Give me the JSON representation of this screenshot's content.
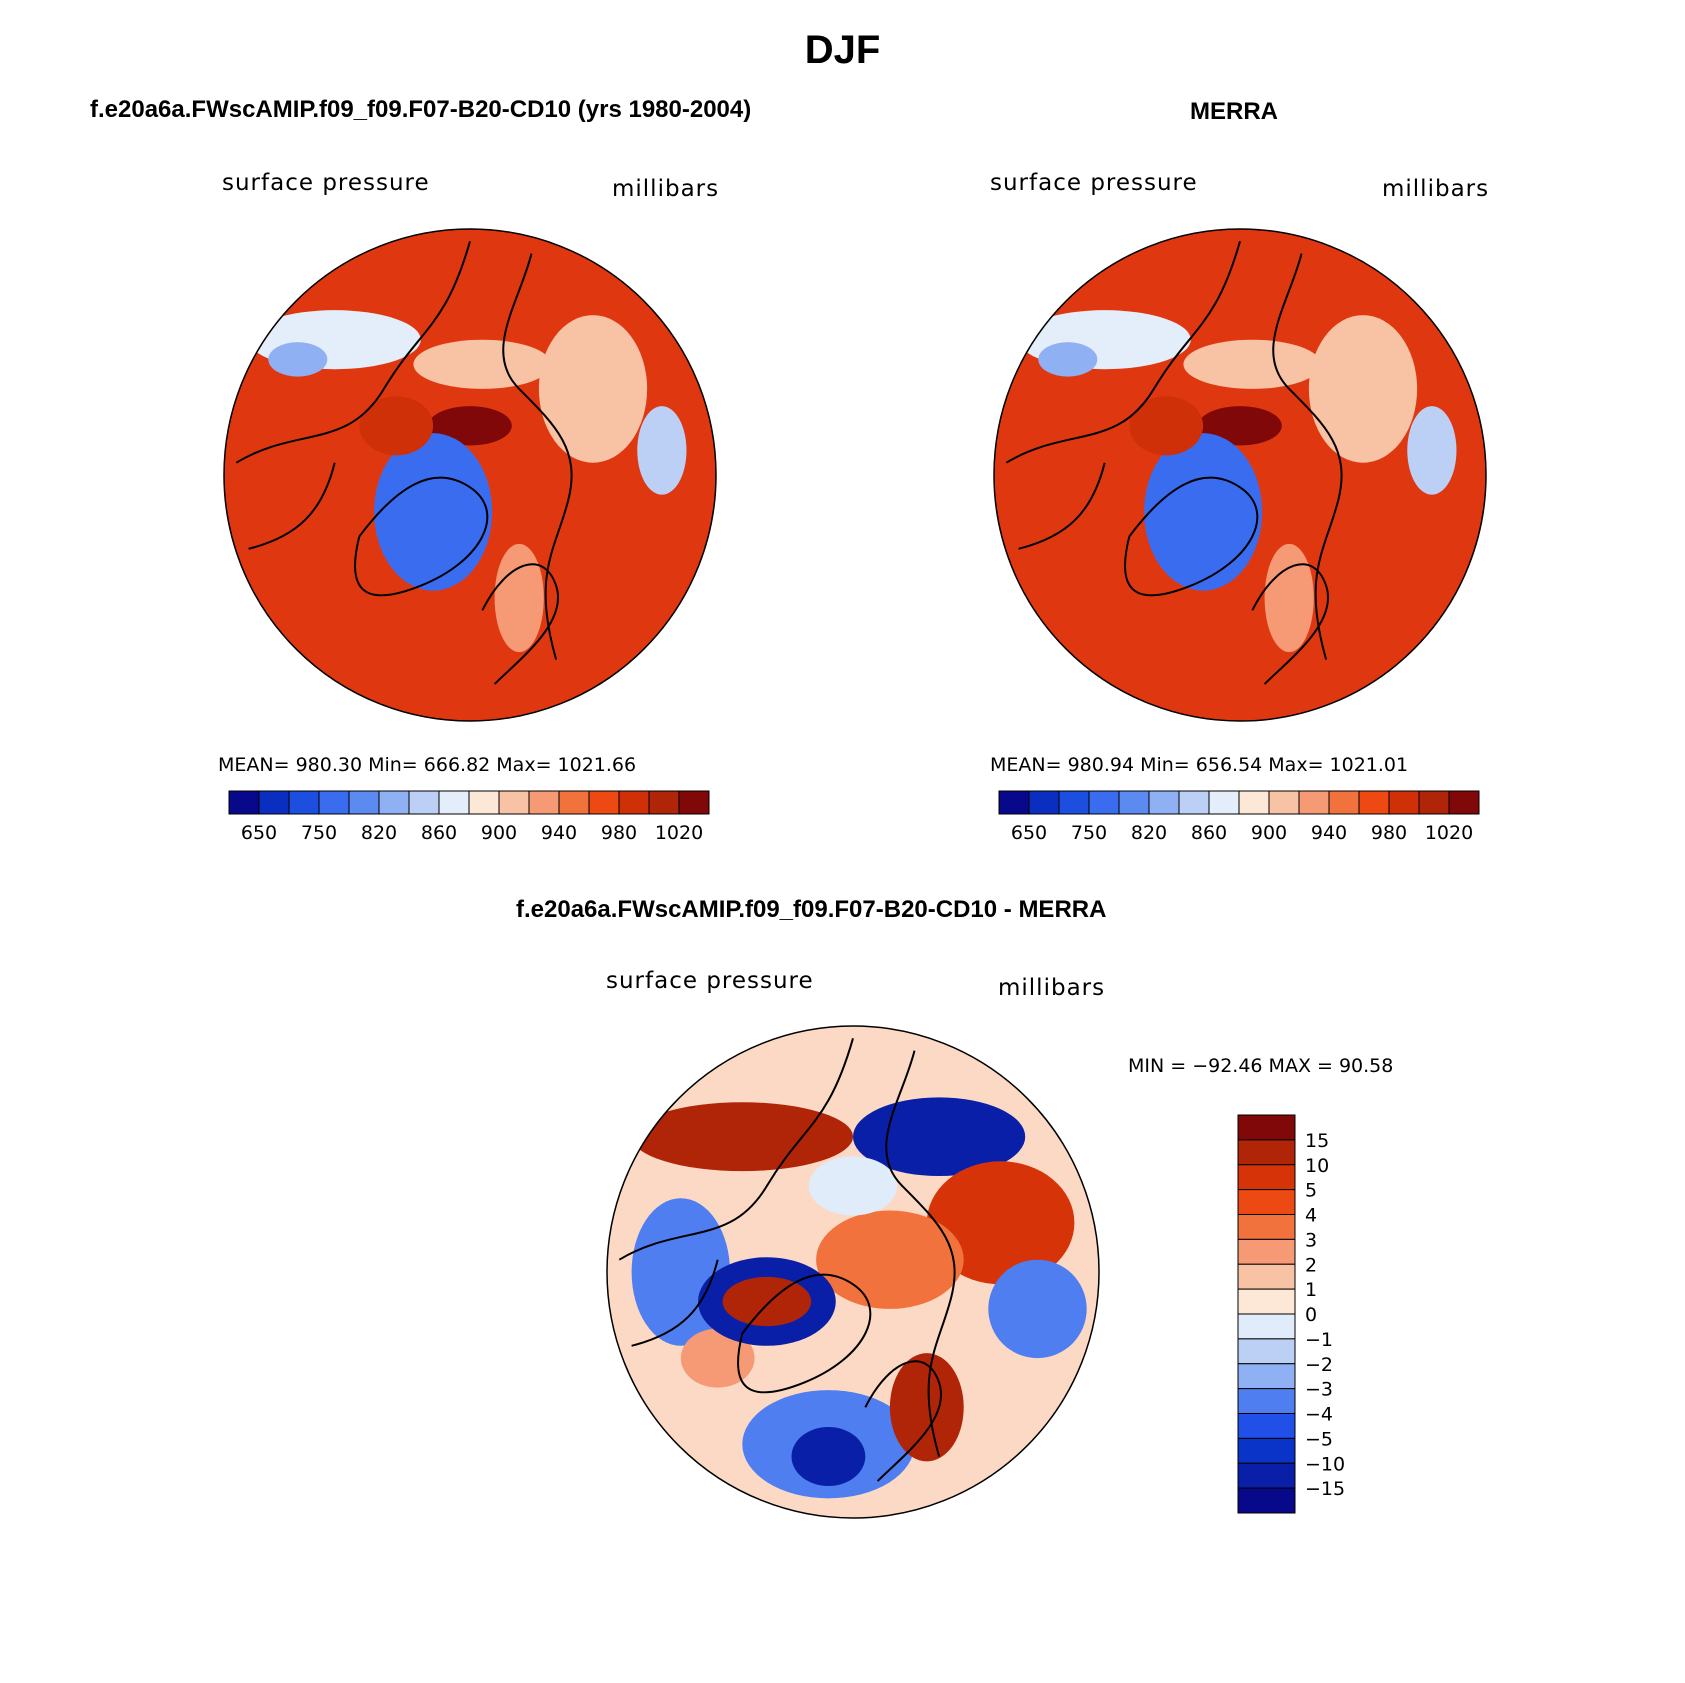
{
  "figure": {
    "title": "DJF"
  },
  "panels": [
    {
      "id": "model",
      "title": "f.e20a6a.FWscAMIP.f09_f09.F07-B20-CD10 (yrs 1980-2004)",
      "variable": "surface pressure",
      "units": "millibars",
      "stats": "MEAN=  980.30   Min=  666.82   Max=  1021.66",
      "colorbar_ticks": [
        "650",
        "750",
        "820",
        "860",
        "900",
        "940",
        "980",
        "1020"
      ]
    },
    {
      "id": "merra",
      "title": "MERRA",
      "variable": "surface pressure",
      "units": "millibars",
      "stats": "MEAN=  980.94   Min=  656.54   Max=  1021.01",
      "colorbar_ticks": [
        "650",
        "750",
        "820",
        "860",
        "900",
        "940",
        "980",
        "1020"
      ]
    },
    {
      "id": "difference",
      "title": "f.e20a6a.FWscAMIP.f09_f09.F07-B20-CD10 - MERRA",
      "variable": "surface pressure",
      "units": "millibars",
      "stats": "MIN  =  −92.46  MAX  =    90.58",
      "colorbar_ticks": [
        "15",
        "10",
        "5",
        "4",
        "3",
        "2",
        "1",
        "0",
        "−1",
        "−2",
        "−3",
        "−4",
        "−5",
        "−10",
        "−15"
      ]
    }
  ],
  "colors": {
    "abs_scale": [
      "#08088a",
      "#0a2fc0",
      "#1c4fe0",
      "#3a6cf0",
      "#5b8af0",
      "#8fb0f2",
      "#bcd0f6",
      "#e4eefa",
      "#fde8d8",
      "#f8c2a4",
      "#f59a74",
      "#f2723e",
      "#ec4a12",
      "#cf3008",
      "#b02408",
      "#800808"
    ],
    "diff_scale": [
      "#800808",
      "#b02408",
      "#d63408",
      "#ec4a12",
      "#f2723e",
      "#f59a74",
      "#f8c2a4",
      "#fde8d8",
      "#e0ecfa",
      "#bcd0f6",
      "#8fb0f2",
      "#4f7ef0",
      "#2050e8",
      "#0a34c8",
      "#0a1fa8",
      "#08088a"
    ],
    "map_background": "#df3810",
    "land_outline": "#000000"
  }
}
